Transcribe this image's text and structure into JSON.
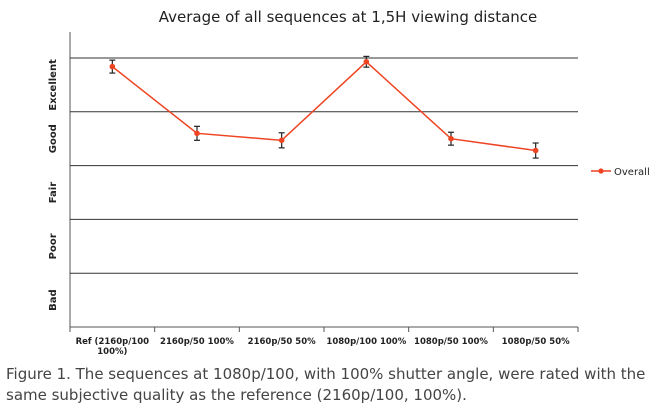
{
  "chart_data": {
    "type": "line",
    "title": "Average of all sequences at 1,5H viewing distance",
    "categories": [
      [
        "Ref (2160p/100",
        "100%)"
      ],
      [
        "2160p/50 100%"
      ],
      [
        "2160p/50 50%"
      ],
      [
        "1080p/100 100%"
      ],
      [
        "1080p/50 100%"
      ],
      [
        "1080p/50 50%"
      ]
    ],
    "y_levels": [
      "Bad",
      "Poor",
      "Fair",
      "Good",
      "Excellent"
    ],
    "ylim": [
      0,
      5
    ],
    "grid": true,
    "legend_position": "right",
    "series": [
      {
        "name": "Overall",
        "color": "#ee4422",
        "values": [
          4.84,
          3.6,
          3.47,
          4.93,
          3.5,
          3.28
        ],
        "errors": [
          0.12,
          0.13,
          0.14,
          0.1,
          0.12,
          0.14
        ]
      }
    ]
  },
  "caption": "Figure 1. The sequences at 1080p/100, with 100% shutter angle, were rated with the same subjective quality as the reference (2160p/100, 100%)."
}
